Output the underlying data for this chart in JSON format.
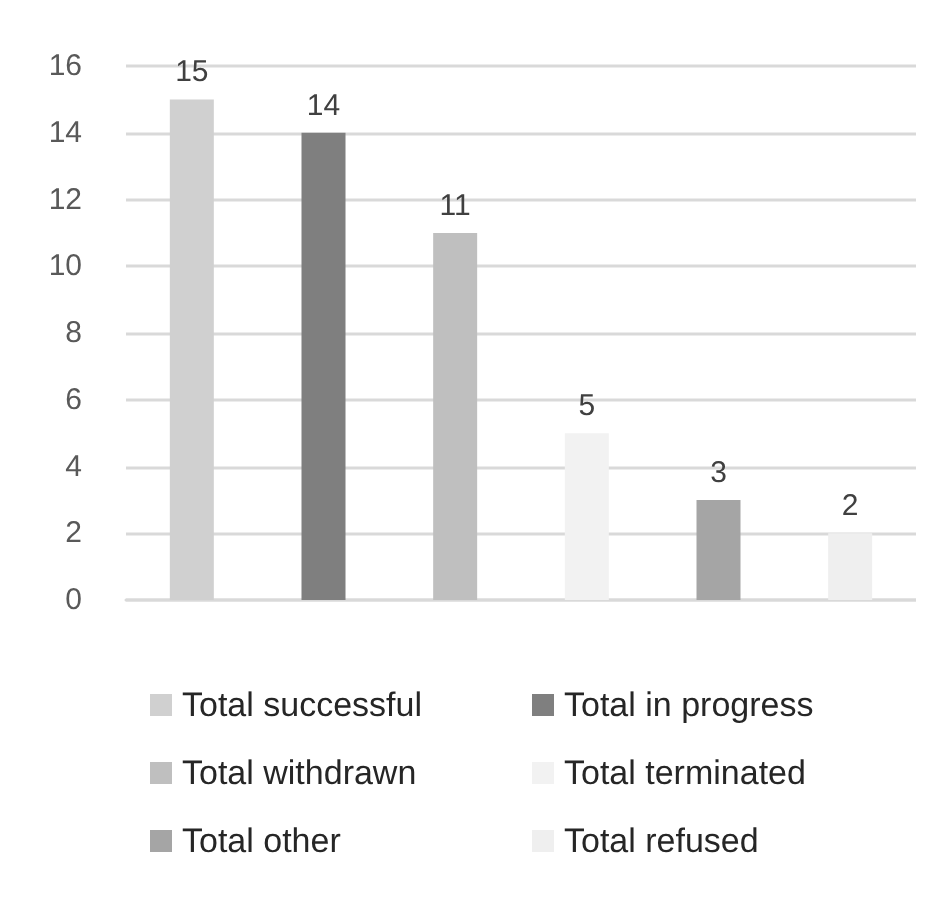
{
  "chart_data": {
    "type": "bar",
    "categories": [
      null,
      null,
      null,
      null,
      null,
      null
    ],
    "series": [
      {
        "name": "Total successful",
        "color": "#d0d0d0",
        "values": [
          15,
          null,
          null,
          null,
          null,
          null
        ]
      },
      {
        "name": "Total in progress",
        "color": "#7f7f7f",
        "values": [
          null,
          14,
          null,
          null,
          null,
          null
        ]
      },
      {
        "name": "Total withdrawn",
        "color": "#bfbfbf",
        "values": [
          null,
          null,
          11,
          null,
          null,
          null
        ]
      },
      {
        "name": "Total terminated",
        "color": "#f2f2f2",
        "values": [
          null,
          null,
          null,
          5,
          null,
          null
        ]
      },
      {
        "name": "Total other",
        "color": "#a5a5a5",
        "values": [
          null,
          null,
          null,
          null,
          3,
          null
        ]
      },
      {
        "name": "Total refused",
        "color": "#efefef",
        "values": [
          null,
          null,
          null,
          null,
          null,
          2
        ]
      }
    ],
    "ylim": [
      0,
      16
    ],
    "yticks": [
      0,
      2,
      4,
      6,
      8,
      10,
      12,
      14,
      16
    ],
    "grid": "y",
    "legend": "bottom",
    "data_labels": true
  }
}
